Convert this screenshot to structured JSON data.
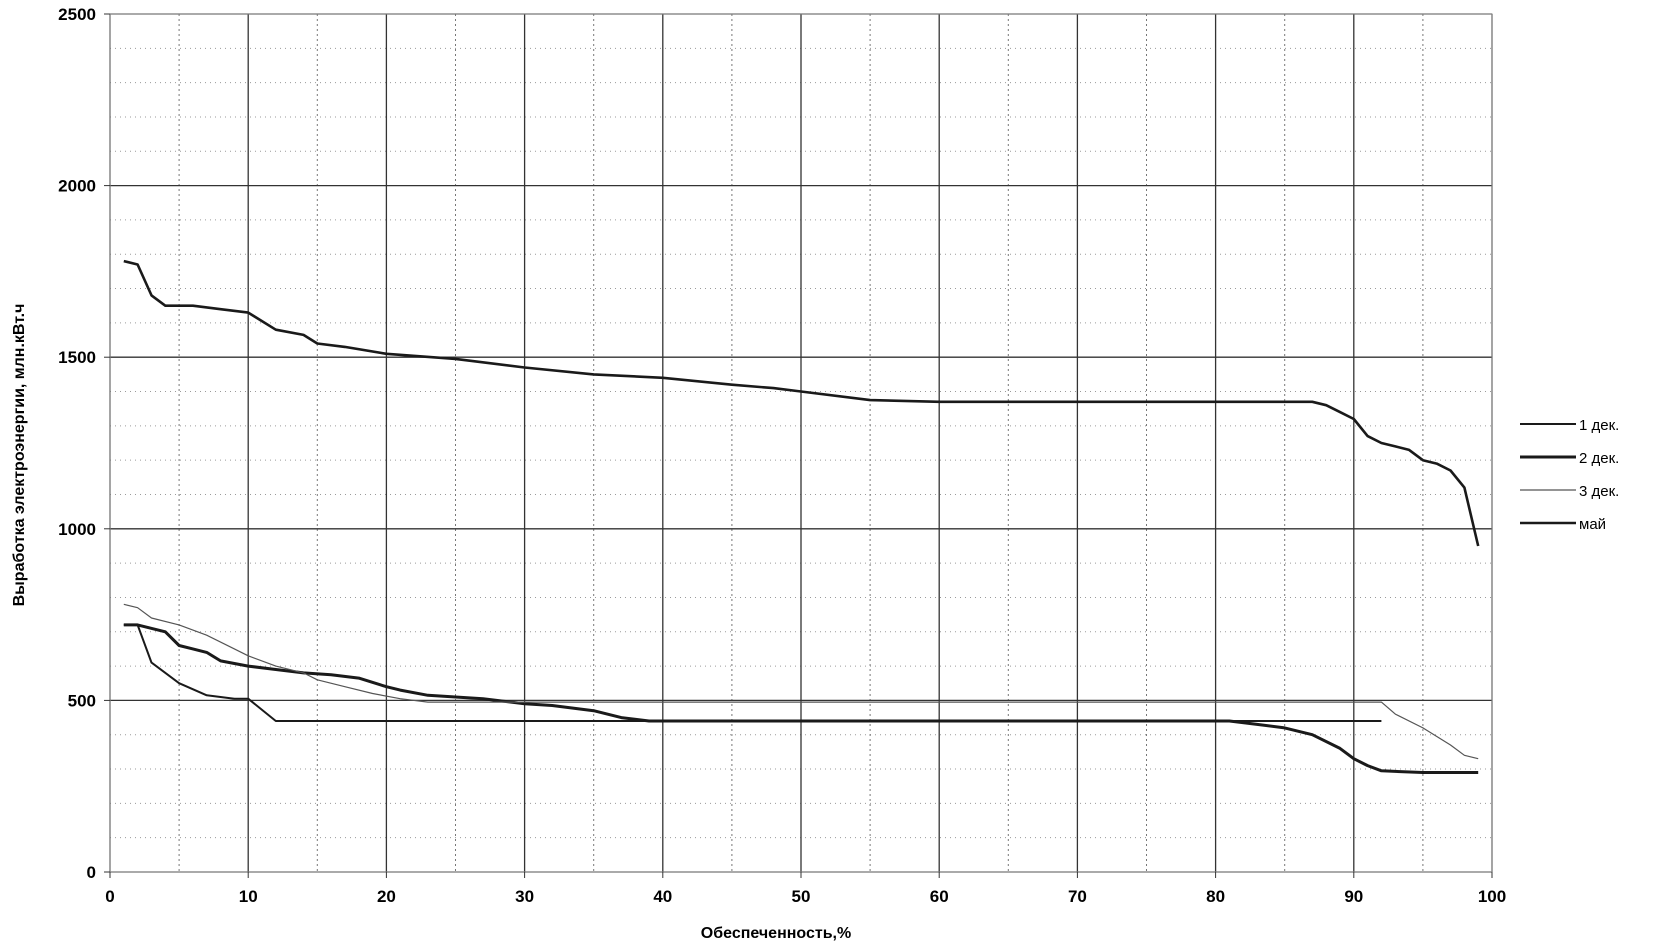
{
  "chart_data": {
    "type": "line",
    "title": "",
    "xlabel": "Обеспеченность,%",
    "ylabel": "Выработка электроэнергии, млн.кВт.ч",
    "xlim": [
      0,
      100
    ],
    "ylim": [
      0,
      2500
    ],
    "x_ticks": [
      0,
      10,
      20,
      30,
      40,
      50,
      60,
      70,
      80,
      90,
      100
    ],
    "y_ticks": [
      0,
      500,
      1000,
      1500,
      2000,
      2500
    ],
    "x_minor_step": 5,
    "y_minor_step": 100,
    "grid": true,
    "legend_position": "right",
    "series": [
      {
        "name": "1 дек.",
        "color": "#1a1a1a",
        "points": [
          [
            1,
            720
          ],
          [
            2,
            720
          ],
          [
            3,
            610
          ],
          [
            5,
            550
          ],
          [
            7,
            515
          ],
          [
            9,
            505
          ],
          [
            10,
            505
          ],
          [
            12,
            440
          ],
          [
            20,
            440
          ],
          [
            30,
            440
          ],
          [
            40,
            440
          ],
          [
            50,
            440
          ],
          [
            60,
            440
          ],
          [
            70,
            440
          ],
          [
            80,
            440
          ],
          [
            92,
            440
          ]
        ]
      },
      {
        "name": "2 дек.",
        "color": "#1a1a1a",
        "points": [
          [
            1,
            720
          ],
          [
            2,
            720
          ],
          [
            4,
            700
          ],
          [
            5,
            660
          ],
          [
            6,
            650
          ],
          [
            7,
            640
          ],
          [
            8,
            615
          ],
          [
            10,
            600
          ],
          [
            12,
            590
          ],
          [
            14,
            580
          ],
          [
            16,
            575
          ],
          [
            18,
            565
          ],
          [
            20,
            540
          ],
          [
            21,
            530
          ],
          [
            23,
            515
          ],
          [
            25,
            510
          ],
          [
            27,
            505
          ],
          [
            30,
            490
          ],
          [
            32,
            485
          ],
          [
            35,
            470
          ],
          [
            37,
            450
          ],
          [
            39,
            440
          ],
          [
            45,
            440
          ],
          [
            60,
            440
          ],
          [
            70,
            440
          ],
          [
            80,
            440
          ],
          [
            81,
            440
          ],
          [
            83,
            430
          ],
          [
            85,
            420
          ],
          [
            87,
            400
          ],
          [
            89,
            360
          ],
          [
            90,
            330
          ],
          [
            91,
            310
          ],
          [
            92,
            295
          ],
          [
            95,
            290
          ],
          [
            99,
            290
          ]
        ]
      },
      {
        "name": "3 дек.",
        "color": "#555555",
        "points": [
          [
            1,
            780
          ],
          [
            2,
            770
          ],
          [
            3,
            740
          ],
          [
            5,
            720
          ],
          [
            7,
            690
          ],
          [
            9,
            650
          ],
          [
            10,
            630
          ],
          [
            12,
            600
          ],
          [
            14,
            580
          ],
          [
            15,
            560
          ],
          [
            17,
            540
          ],
          [
            19,
            520
          ],
          [
            21,
            505
          ],
          [
            23,
            495
          ],
          [
            25,
            495
          ],
          [
            30,
            495
          ],
          [
            40,
            495
          ],
          [
            50,
            495
          ],
          [
            60,
            495
          ],
          [
            70,
            495
          ],
          [
            80,
            495
          ],
          [
            90,
            495
          ],
          [
            92,
            495
          ],
          [
            93,
            460
          ],
          [
            95,
            420
          ],
          [
            97,
            370
          ],
          [
            98,
            340
          ],
          [
            99,
            330
          ]
        ]
      },
      {
        "name": "май",
        "color": "#1a1a1a",
        "points": [
          [
            1,
            1780
          ],
          [
            2,
            1770
          ],
          [
            3,
            1680
          ],
          [
            4,
            1650
          ],
          [
            6,
            1650
          ],
          [
            8,
            1640
          ],
          [
            10,
            1630
          ],
          [
            12,
            1580
          ],
          [
            14,
            1565
          ],
          [
            15,
            1540
          ],
          [
            17,
            1530
          ],
          [
            20,
            1510
          ],
          [
            25,
            1495
          ],
          [
            30,
            1470
          ],
          [
            35,
            1450
          ],
          [
            40,
            1440
          ],
          [
            45,
            1420
          ],
          [
            48,
            1410
          ],
          [
            50,
            1400
          ],
          [
            55,
            1375
          ],
          [
            60,
            1370
          ],
          [
            70,
            1370
          ],
          [
            80,
            1370
          ],
          [
            85,
            1370
          ],
          [
            87,
            1370
          ],
          [
            88,
            1360
          ],
          [
            89,
            1340
          ],
          [
            90,
            1320
          ],
          [
            91,
            1270
          ],
          [
            92,
            1250
          ],
          [
            93,
            1240
          ],
          [
            94,
            1230
          ],
          [
            95,
            1200
          ],
          [
            96,
            1190
          ],
          [
            97,
            1170
          ],
          [
            98,
            1120
          ],
          [
            99,
            950
          ]
        ]
      }
    ]
  }
}
